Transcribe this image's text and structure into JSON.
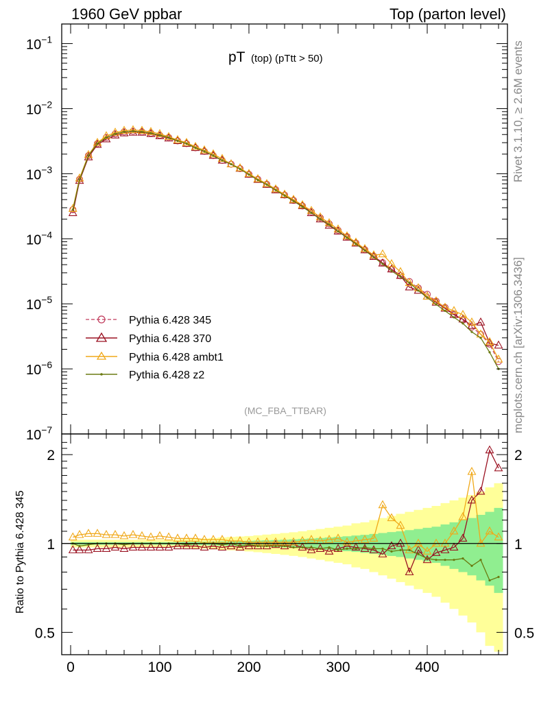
{
  "header": {
    "left": "1960 GeV ppbar",
    "right": "Top (parton level)"
  },
  "plot_title": {
    "main": "pT",
    "sub": "(top) (pTtt > 50)"
  },
  "watermark": "(MC_FBA_TTBAR)",
  "side_text": {
    "top": "Rivet 3.1.10, ≥ 2.6M events",
    "bottom": "mcplots.cern.ch [arXiv:1306.3436]"
  },
  "ratio_ylabel": "Ratio to Pythia 6.428 345",
  "colors": {
    "s345": "#c0395a",
    "s370": "#9a1020",
    "ambt1": "#f0a818",
    "z2": "#6a7a10",
    "band_green": "#90ee90",
    "band_yellow": "#ffff99"
  },
  "chart_data": [
    {
      "type": "line",
      "title": "pT (top) (pTtt > 50)",
      "xlabel": "",
      "ylabel": "",
      "xlim": [
        -10,
        490
      ],
      "ylim": [
        1e-07,
        0.2
      ],
      "log_y": true,
      "x_ticks": [
        0,
        100,
        200,
        300,
        400
      ],
      "y_tick_labels": [
        "10^-1",
        "10^-2",
        "10^-3",
        "10^-4",
        "10^-5",
        "10^-6",
        "10^-7"
      ],
      "legend_position": "lower-left",
      "x": [
        2.5,
        10,
        20,
        30,
        40,
        50,
        60,
        70,
        80,
        90,
        100,
        110,
        120,
        130,
        140,
        150,
        160,
        170,
        180,
        190,
        200,
        210,
        220,
        230,
        240,
        250,
        260,
        270,
        280,
        290,
        300,
        310,
        320,
        330,
        340,
        350,
        360,
        370,
        380,
        390,
        400,
        410,
        420,
        430,
        440,
        450,
        460,
        470,
        480
      ],
      "series": [
        {
          "name": "Pythia 6.428 345",
          "marker": "circle",
          "line": "dashed",
          "values": [
            0.00028,
            0.00082,
            0.0019,
            0.0029,
            0.0036,
            0.0041,
            0.0044,
            0.0045,
            0.0044,
            0.0042,
            0.0039,
            0.0036,
            0.0032,
            0.0029,
            0.0025,
            0.0022,
            0.0019,
            0.0016,
            0.0014,
            0.0012,
            0.00098,
            0.00082,
            0.00069,
            0.00057,
            0.00047,
            0.00039,
            0.00032,
            0.00026,
            0.00021,
            0.00017,
            0.000135,
            0.000108,
            8.6e-05,
            6.8e-05,
            5.4e-05,
            4.3e-05,
            3.4e-05,
            2.7e-05,
            2.2e-05,
            1.75e-05,
            1.4e-05,
            1.1e-05,
            8.8e-06,
            7e-06,
            5.6e-06,
            4.4e-06,
            3.4e-06,
            2.4e-06,
            1.3e-06
          ]
        },
        {
          "name": "Pythia 6.428 370",
          "marker": "triangle",
          "line": "solid",
          "values": [
            0.00025,
            0.00078,
            0.0018,
            0.0028,
            0.0034,
            0.0039,
            0.0042,
            0.0043,
            0.0043,
            0.0041,
            0.0038,
            0.0035,
            0.0032,
            0.0029,
            0.0025,
            0.0022,
            0.0019,
            0.0016,
            0.0014,
            0.0012,
            0.00097,
            0.00081,
            0.00068,
            0.00056,
            0.00047,
            0.00039,
            0.00032,
            0.00025,
            0.0002,
            0.00016,
            0.00013,
            0.000105,
            8.5e-05,
            6.7e-05,
            5.3e-05,
            4.2e-05,
            3.4e-05,
            2.7e-05,
            1.8e-05,
            1.6e-05,
            1.3e-05,
            1.05e-05,
            8.5e-06,
            6.8e-06,
            5.8e-06,
            4.6e-06,
            5.2e-06,
            2.5e-06,
            2.3e-06
          ]
        },
        {
          "name": "Pythia 6.428 ambt1",
          "marker": "triangle",
          "line": "solid",
          "values": [
            0.00029,
            0.00085,
            0.00195,
            0.003,
            0.0038,
            0.0043,
            0.0046,
            0.0047,
            0.0046,
            0.0044,
            0.0041,
            0.0037,
            0.0033,
            0.003,
            0.0026,
            0.0023,
            0.002,
            0.0017,
            0.0014,
            0.00122,
            0.001,
            0.00083,
            0.0007,
            0.00058,
            0.00048,
            0.0004,
            0.00033,
            0.00027,
            0.000215,
            0.000175,
            0.00014,
            0.00011,
            8.8e-05,
            7e-05,
            5.6e-05,
            5.8e-05,
            4.1e-05,
            3.1e-05,
            2.1e-05,
            1.75e-05,
            1.3e-05,
            1.1e-05,
            8.8e-06,
            7.8e-06,
            6.8e-06,
            5.2e-06,
            3.4e-06,
            2.6e-06,
            1.4e-06
          ]
        },
        {
          "name": "Pythia 6.428 z2",
          "marker": "dot",
          "line": "solid",
          "values": [
            0.00028,
            0.00081,
            0.0019,
            0.0029,
            0.0036,
            0.0041,
            0.0044,
            0.0045,
            0.0044,
            0.0042,
            0.0039,
            0.0036,
            0.0032,
            0.0029,
            0.0025,
            0.0022,
            0.0019,
            0.0016,
            0.0014,
            0.00118,
            0.00097,
            0.0008,
            0.00068,
            0.00056,
            0.00046,
            0.00038,
            0.00031,
            0.00025,
            0.0002,
            0.000165,
            0.00013,
            0.000104,
            8.3e-05,
            6.6e-05,
            5.2e-05,
            4.1e-05,
            3.2e-05,
            2.6e-05,
            2.1e-05,
            1.6e-05,
            1.25e-05,
            9.8e-06,
            7.8e-06,
            6.2e-06,
            5e-06,
            3.7e-06,
            3e-06,
            1.8e-06,
            1e-06
          ]
        }
      ]
    },
    {
      "type": "line",
      "title": "",
      "xlabel": "",
      "ylabel": "Ratio to Pythia 6.428 345",
      "xlim": [
        -10,
        490
      ],
      "ylim": [
        0.42,
        2.35
      ],
      "y_ticks": [
        0.5,
        1,
        2
      ],
      "x_ticks": [
        0,
        100,
        200,
        300,
        400
      ],
      "x": [
        2.5,
        10,
        20,
        30,
        40,
        50,
        60,
        70,
        80,
        90,
        100,
        110,
        120,
        130,
        140,
        150,
        160,
        170,
        180,
        190,
        200,
        210,
        220,
        230,
        240,
        250,
        260,
        270,
        280,
        290,
        300,
        310,
        320,
        330,
        340,
        350,
        360,
        370,
        380,
        390,
        400,
        410,
        420,
        430,
        440,
        450,
        460,
        470,
        480
      ],
      "uncertainty_band": {
        "green_halfwidth": [
          0.01,
          0.01,
          0.01,
          0.01,
          0.01,
          0.01,
          0.01,
          0.01,
          0.01,
          0.01,
          0.01,
          0.01,
          0.01,
          0.012,
          0.013,
          0.014,
          0.015,
          0.017,
          0.018,
          0.02,
          0.021,
          0.023,
          0.025,
          0.027,
          0.03,
          0.033,
          0.036,
          0.04,
          0.044,
          0.048,
          0.053,
          0.058,
          0.064,
          0.07,
          0.077,
          0.085,
          0.093,
          0.1,
          0.11,
          0.12,
          0.13,
          0.14,
          0.16,
          0.18,
          0.2,
          0.22,
          0.25,
          0.28,
          0.32
        ],
        "yellow_halfwidth": [
          0.03,
          0.03,
          0.03,
          0.03,
          0.03,
          0.03,
          0.03,
          0.03,
          0.03,
          0.03,
          0.03,
          0.03,
          0.03,
          0.034,
          0.037,
          0.04,
          0.044,
          0.048,
          0.052,
          0.056,
          0.06,
          0.066,
          0.072,
          0.078,
          0.085,
          0.092,
          0.1,
          0.11,
          0.12,
          0.13,
          0.14,
          0.15,
          0.17,
          0.18,
          0.2,
          0.22,
          0.24,
          0.26,
          0.28,
          0.3,
          0.32,
          0.34,
          0.37,
          0.4,
          0.43,
          0.46,
          0.5,
          0.55,
          0.6
        ]
      },
      "series": [
        {
          "name": "Pythia 6.428 370",
          "values": [
            0.95,
            0.95,
            0.95,
            0.96,
            0.96,
            0.97,
            0.96,
            0.97,
            0.97,
            0.97,
            0.97,
            0.97,
            0.98,
            0.98,
            0.98,
            0.97,
            0.98,
            0.97,
            0.98,
            0.97,
            0.98,
            0.98,
            0.98,
            0.99,
            0.98,
            0.99,
            0.97,
            0.95,
            0.96,
            0.94,
            0.96,
            0.98,
            0.97,
            0.96,
            0.95,
            0.92,
            0.98,
            1.0,
            0.8,
            0.95,
            0.88,
            0.93,
            0.95,
            0.97,
            1.04,
            1.4,
            1.5,
            2.07,
            1.8
          ]
        },
        {
          "name": "Pythia 6.428 ambt1",
          "values": [
            1.05,
            1.07,
            1.08,
            1.08,
            1.07,
            1.07,
            1.06,
            1.07,
            1.06,
            1.05,
            1.06,
            1.05,
            1.04,
            1.04,
            1.04,
            1.03,
            1.03,
            1.03,
            1.02,
            1.02,
            1.01,
            1.01,
            1.01,
            1.01,
            1.01,
            1.01,
            1.02,
            1.03,
            1.02,
            1.03,
            1.04,
            1.01,
            1.02,
            1.03,
            1.04,
            1.35,
            1.22,
            1.15,
            0.95,
            1.0,
            0.94,
            1.0,
            1.0,
            1.1,
            1.23,
            1.75,
            1.0,
            1.1,
            1.05
          ]
        },
        {
          "name": "Pythia 6.428 z2",
          "values": [
            1.0,
            0.98,
            0.99,
            1.0,
            1.0,
            1.0,
            0.99,
            1.0,
            1.0,
            1.0,
            1.0,
            1.0,
            1.0,
            0.99,
            1.0,
            1.0,
            1.0,
            0.99,
            1.0,
            0.98,
            0.99,
            0.98,
            0.98,
            0.98,
            0.98,
            0.97,
            0.97,
            0.97,
            0.96,
            0.97,
            0.95,
            0.96,
            0.96,
            0.97,
            0.96,
            0.96,
            0.94,
            0.95,
            0.95,
            0.92,
            0.89,
            0.88,
            0.88,
            0.88,
            0.89,
            0.84,
            0.88,
            0.75,
            0.77
          ]
        }
      ]
    }
  ]
}
